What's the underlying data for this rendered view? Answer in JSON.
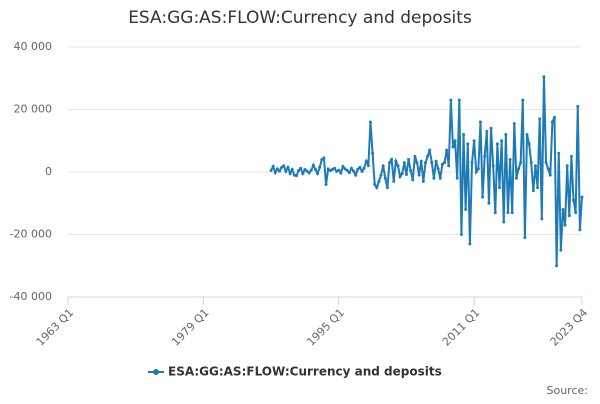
{
  "chart_data": {
    "type": "line",
    "title": "ESA:GG:AS:FLOW:Currency and deposits",
    "source": "Source:",
    "xlim": [
      "1963 Q1",
      "2023 Q4"
    ],
    "xticks": [
      "1963 Q1",
      "1979 Q1",
      "1995 Q1",
      "2011 Q1",
      "2023 Q4"
    ],
    "ylim": [
      -40000,
      40000
    ],
    "yticks": [
      {
        "value": -40000,
        "label": "-40 000"
      },
      {
        "value": -20000,
        "label": "-20 000"
      },
      0,
      {
        "value": 20000,
        "label": "20 000"
      },
      {
        "value": 40000,
        "label": "40 000"
      }
    ],
    "grid": true,
    "legend": "bottom",
    "x": [
      "1987 Q1",
      "1987 Q2",
      "1987 Q3",
      "1987 Q4",
      "1988 Q1",
      "1988 Q2",
      "1988 Q3",
      "1988 Q4",
      "1989 Q1",
      "1989 Q2",
      "1989 Q3",
      "1989 Q4",
      "1990 Q1",
      "1990 Q2",
      "1990 Q3",
      "1990 Q4",
      "1991 Q1",
      "1991 Q2",
      "1991 Q3",
      "1991 Q4",
      "1992 Q1",
      "1992 Q2",
      "1992 Q3",
      "1992 Q4",
      "1993 Q1",
      "1993 Q2",
      "1993 Q3",
      "1993 Q4",
      "1994 Q1",
      "1994 Q2",
      "1994 Q3",
      "1994 Q4",
      "1995 Q1",
      "1995 Q2",
      "1995 Q3",
      "1995 Q4",
      "1996 Q1",
      "1996 Q2",
      "1996 Q3",
      "1996 Q4",
      "1997 Q1",
      "1997 Q2",
      "1997 Q3",
      "1997 Q4",
      "1998 Q1",
      "1998 Q2",
      "1998 Q3",
      "1998 Q4",
      "1999 Q1",
      "1999 Q2",
      "1999 Q3",
      "1999 Q4",
      "2000 Q1",
      "2000 Q2",
      "2000 Q3",
      "2000 Q4",
      "2001 Q1",
      "2001 Q2",
      "2001 Q3",
      "2001 Q4",
      "2002 Q1",
      "2002 Q2",
      "2002 Q3",
      "2002 Q4",
      "2003 Q1",
      "2003 Q2",
      "2003 Q3",
      "2003 Q4",
      "2004 Q1",
      "2004 Q2",
      "2004 Q3",
      "2004 Q4",
      "2005 Q1",
      "2005 Q2",
      "2005 Q3",
      "2005 Q4",
      "2006 Q1",
      "2006 Q2",
      "2006 Q3",
      "2006 Q4",
      "2007 Q1",
      "2007 Q2",
      "2007 Q3",
      "2007 Q4",
      "2008 Q1",
      "2008 Q2",
      "2008 Q3",
      "2008 Q4",
      "2009 Q1",
      "2009 Q2",
      "2009 Q3",
      "2009 Q4",
      "2010 Q1",
      "2010 Q2",
      "2010 Q3",
      "2010 Q4",
      "2011 Q1",
      "2011 Q2",
      "2011 Q3",
      "2011 Q4",
      "2012 Q1",
      "2012 Q2",
      "2012 Q3",
      "2012 Q4",
      "2013 Q1",
      "2013 Q2",
      "2013 Q3",
      "2013 Q4",
      "2014 Q1",
      "2014 Q2",
      "2014 Q3",
      "2014 Q4",
      "2015 Q1",
      "2015 Q2",
      "2015 Q3",
      "2015 Q4",
      "2016 Q1",
      "2016 Q2",
      "2016 Q3",
      "2016 Q4",
      "2017 Q1",
      "2017 Q2",
      "2017 Q3",
      "2017 Q4",
      "2018 Q1",
      "2018 Q2",
      "2018 Q3",
      "2018 Q4",
      "2019 Q1",
      "2019 Q2",
      "2019 Q3",
      "2019 Q4",
      "2020 Q1",
      "2020 Q2",
      "2020 Q3",
      "2020 Q4",
      "2021 Q1",
      "2021 Q2",
      "2021 Q3",
      "2021 Q4",
      "2022 Q1",
      "2022 Q2",
      "2022 Q3",
      "2022 Q4",
      "2023 Q1",
      "2023 Q2",
      "2023 Q3",
      "2023 Q4"
    ],
    "series": [
      {
        "name": "ESA:GG:AS:FLOW:Currency and deposits",
        "color": "#1f7bb6",
        "values": [
          500,
          1800,
          -200,
          1000,
          300,
          1500,
          2000,
          200,
          1500,
          -500,
          800,
          -1000,
          -1200,
          500,
          1200,
          -500,
          800,
          300,
          -300,
          600,
          2200,
          800,
          -500,
          1500,
          4000,
          4500,
          -4000,
          1000,
          500,
          800,
          1200,
          200,
          600,
          -300,
          1800,
          1000,
          500,
          -200,
          1200,
          300,
          -1000,
          900,
          1500,
          200,
          1200,
          3500,
          2000,
          16000,
          6000,
          -4000,
          -5000,
          -3000,
          -1000,
          2000,
          -2000,
          -5000,
          3000,
          4000,
          -3000,
          3500,
          2000,
          -1500,
          -500,
          3000,
          -800,
          4000,
          500,
          -2500,
          5000,
          3000,
          -1000,
          3500,
          -3000,
          3000,
          5000,
          7000,
          3000,
          -2000,
          3500,
          1000,
          -2000,
          2500,
          3000,
          7000,
          2000,
          23000,
          8000,
          10000,
          -2000,
          23000,
          -20000,
          12000,
          -12000,
          9000,
          -23000,
          3000,
          10000,
          0,
          1000,
          16000,
          -8000,
          5000,
          13000,
          -10000,
          14000,
          2000,
          -13000,
          9000,
          -5000,
          10000,
          -16000,
          12000,
          -13000,
          4000,
          -13000,
          15500,
          -2000,
          1000,
          3000,
          23000,
          -21000,
          12000,
          9000,
          3000,
          -6000,
          2000,
          -5000,
          17000,
          -15000,
          30500,
          3000,
          1000,
          -1000,
          16000,
          17500,
          -30000,
          6000,
          -25000,
          -12000,
          -17000,
          2000,
          -14000,
          5000,
          -9000,
          -13000,
          21000,
          -18500,
          -8000
        ]
      }
    ]
  }
}
